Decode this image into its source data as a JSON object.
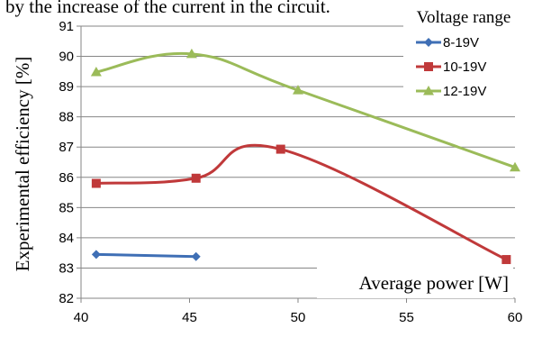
{
  "caption_fragment": "by the increase of the current in the circuit.",
  "chart_data": {
    "type": "line",
    "xlabel": "Average power [W]",
    "ylabel": "Experimental efficiency [%]",
    "xlim": [
      40,
      60
    ],
    "ylim": [
      82,
      91
    ],
    "xticks": [
      40,
      45,
      50,
      55,
      60
    ],
    "yticks": [
      82,
      83,
      84,
      85,
      86,
      87,
      88,
      89,
      90,
      91
    ],
    "grid": "horizontal",
    "legend_title": "Voltage range",
    "legend_position": "top-right",
    "series": [
      {
        "name": "8-19V",
        "color": "#3F6FB5",
        "marker": "diamond",
        "x": [
          40.7,
          45.3
        ],
        "y": [
          83.45,
          83.38
        ]
      },
      {
        "name": "10-19V",
        "color": "#C0393A",
        "marker": "square",
        "x": [
          40.7,
          45.3,
          49.2,
          59.6
        ],
        "y": [
          85.8,
          85.97,
          86.93,
          83.28
        ]
      },
      {
        "name": "12-19V",
        "color": "#9BBB59",
        "marker": "triangle",
        "x": [
          40.7,
          45.1,
          50.0,
          60.0
        ],
        "y": [
          89.48,
          90.08,
          88.88,
          86.33
        ]
      }
    ]
  }
}
